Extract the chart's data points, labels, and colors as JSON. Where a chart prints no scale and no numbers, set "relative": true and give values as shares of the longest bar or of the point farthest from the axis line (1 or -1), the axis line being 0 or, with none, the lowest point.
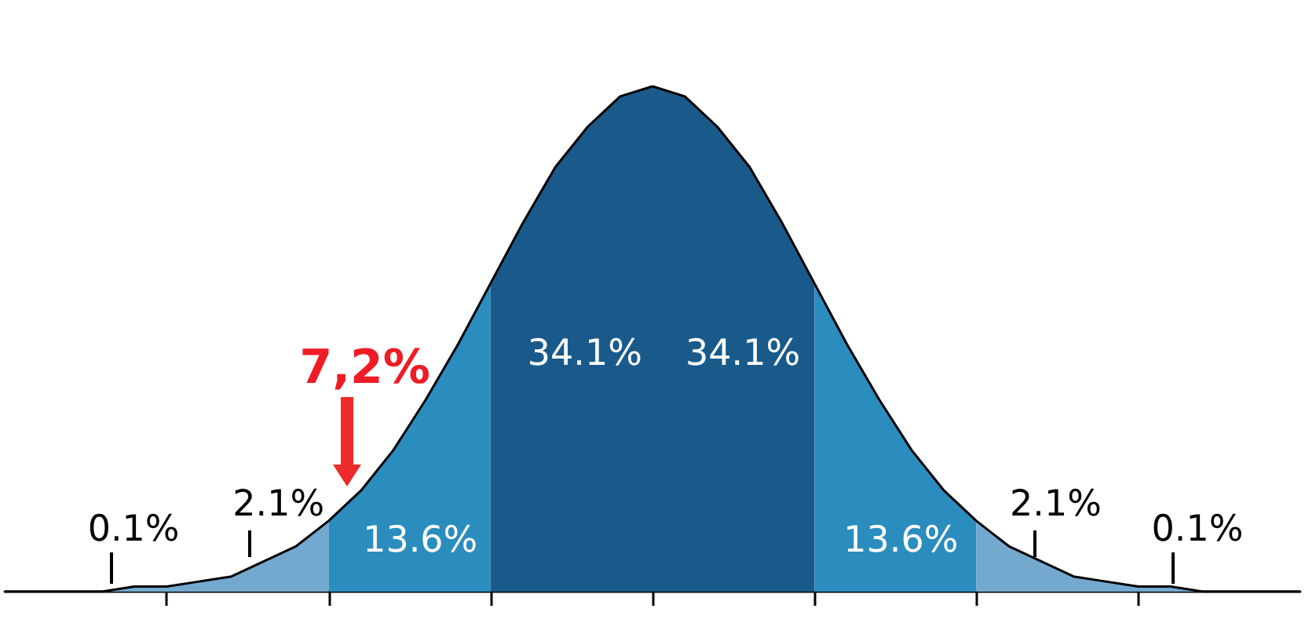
{
  "chart_data": {
    "type": "area",
    "relative": true,
    "categories": [
      null,
      null,
      null,
      null,
      null,
      null,
      null,
      null,
      null,
      null,
      null,
      null,
      null,
      null,
      null,
      null,
      null,
      null,
      null,
      null,
      null,
      null,
      null,
      null,
      null,
      null,
      null,
      null,
      null,
      null,
      null,
      null,
      null,
      null,
      null,
      null,
      null,
      null,
      null,
      null,
      null
    ],
    "series": [
      {
        "color": "#74a9cf",
        "values": [
          0,
          0,
          0,
          0,
          0.01,
          0.01,
          0.02,
          0.03,
          0.06,
          0.09,
          0.14,
          null,
          null,
          null,
          null,
          null,
          null,
          null,
          null,
          null,
          null,
          null,
          null,
          null,
          null,
          null,
          null,
          null,
          null,
          null,
          null,
          null,
          null,
          null,
          null,
          null,
          null,
          null,
          null,
          null,
          null
        ]
      },
      {
        "color": "#2b8cbe",
        "values": [
          null,
          null,
          null,
          null,
          null,
          null,
          null,
          null,
          null,
          null,
          0.14,
          0.2,
          0.28,
          0.38,
          0.49,
          0.61,
          null,
          null,
          null,
          null,
          null,
          null,
          null,
          null,
          null,
          null,
          null,
          null,
          null,
          null,
          null,
          null,
          null,
          null,
          null,
          null,
          null,
          null,
          null,
          null,
          null
        ]
      },
      {
        "color": "#1a5a8a",
        "values": [
          null,
          null,
          null,
          null,
          null,
          null,
          null,
          null,
          null,
          null,
          null,
          null,
          null,
          null,
          null,
          0.61,
          0.73,
          0.84,
          0.92,
          0.98,
          1,
          0.98,
          0.92,
          0.84,
          0.73,
          0.61,
          null,
          null,
          null,
          null,
          null,
          null,
          null,
          null,
          null,
          null,
          null,
          null,
          null,
          null,
          null
        ]
      },
      {
        "color": "#2b8cbe",
        "values": [
          null,
          null,
          null,
          null,
          null,
          null,
          null,
          null,
          null,
          null,
          null,
          null,
          null,
          null,
          null,
          null,
          null,
          null,
          null,
          null,
          null,
          null,
          null,
          null,
          null,
          0.61,
          0.49,
          0.38,
          0.28,
          0.2,
          0.14,
          null,
          null,
          null,
          null,
          null,
          null,
          null,
          null,
          null,
          null
        ]
      },
      {
        "color": "#74a9cf",
        "values": [
          null,
          null,
          null,
          null,
          null,
          null,
          null,
          null,
          null,
          null,
          null,
          null,
          null,
          null,
          null,
          null,
          null,
          null,
          null,
          null,
          null,
          null,
          null,
          null,
          null,
          null,
          null,
          null,
          null,
          null,
          0.14,
          0.09,
          0.06,
          0.03,
          0.02,
          0.01,
          0.01,
          0,
          0,
          0,
          0
        ]
      },
      {
        "type": "line",
        "color": "#000000",
        "values": [
          0,
          0,
          0,
          0,
          0.01,
          0.01,
          0.02,
          0.03,
          0.06,
          0.09,
          0.14,
          0.2,
          0.28,
          0.38,
          0.49,
          0.61,
          0.73,
          0.84,
          0.92,
          0.98,
          1,
          0.98,
          0.92,
          0.84,
          0.73,
          0.61,
          0.49,
          0.38,
          0.28,
          0.2,
          0.14,
          0.09,
          0.06,
          0.03,
          0.02,
          0.01,
          0.01,
          0,
          0,
          0,
          0
        ]
      }
    ],
    "marker": "none",
    "annotations": [
      "0.1%",
      "2.1%",
      "13.6%",
      "34.1%",
      "34.1%",
      "13.6%",
      "2.1%",
      "0.1%",
      "7,2%"
    ]
  }
}
